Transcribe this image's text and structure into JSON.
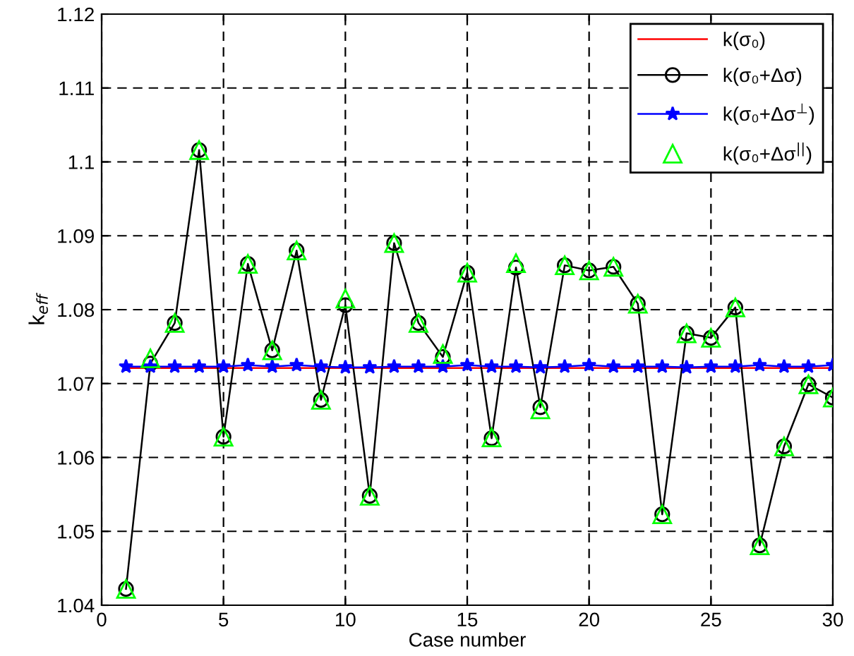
{
  "chart_data": {
    "type": "line",
    "xlabel": "Case number",
    "ylabel": "k$_{eff}$",
    "x": [
      1,
      2,
      3,
      4,
      5,
      6,
      7,
      8,
      9,
      10,
      11,
      12,
      13,
      14,
      15,
      16,
      17,
      18,
      19,
      20,
      21,
      22,
      23,
      24,
      25,
      26,
      27,
      28,
      29,
      30
    ],
    "series": [
      {
        "name": "k(σ₀)",
        "color": "#ff0000",
        "marker": "none",
        "values": [
          1.0721,
          1.0721,
          1.0721,
          1.0721,
          1.0721,
          1.0721,
          1.0721,
          1.0721,
          1.0721,
          1.0721,
          1.0721,
          1.0721,
          1.0721,
          1.0721,
          1.0721,
          1.0721,
          1.0721,
          1.0721,
          1.0721,
          1.0721,
          1.0721,
          1.0721,
          1.0721,
          1.0721,
          1.0721,
          1.0721,
          1.0721,
          1.0721,
          1.0721,
          1.0721
        ]
      },
      {
        "name": "k(σ₀+Δσ)",
        "color": "#000000",
        "marker": "circle",
        "values": [
          1.0422,
          1.0727,
          1.0782,
          1.1016,
          1.0628,
          1.0862,
          1.0745,
          1.088,
          1.0678,
          1.0806,
          1.0548,
          1.089,
          1.0782,
          1.0736,
          1.085,
          1.0626,
          1.0857,
          1.0668,
          1.086,
          1.0853,
          1.0858,
          1.0808,
          1.0523,
          1.0768,
          1.0762,
          1.0803,
          1.0481,
          1.0615,
          1.0699,
          1.0681
        ]
      },
      {
        "name": "k(σ₀+Δσ$^{⊥}$)",
        "color": "#0000ff",
        "marker": "star",
        "values": [
          1.0723,
          1.0723,
          1.0723,
          1.0723,
          1.0723,
          1.0725,
          1.0723,
          1.0725,
          1.0723,
          1.0722,
          1.0722,
          1.0723,
          1.0723,
          1.0723,
          1.0725,
          1.0723,
          1.0723,
          1.0722,
          1.0723,
          1.0725,
          1.0723,
          1.0723,
          1.0723,
          1.0722,
          1.0723,
          1.0723,
          1.0725,
          1.0723,
          1.0723,
          1.0725
        ]
      },
      {
        "name": "k(σ₀+Δσ$^{||}$)",
        "type": "scatter",
        "color": "#00ff00",
        "marker": "triangle",
        "values": [
          1.0422,
          1.0734,
          1.0782,
          1.1016,
          1.0628,
          1.0862,
          1.0745,
          1.088,
          1.0678,
          1.0815,
          1.0548,
          1.089,
          1.0782,
          1.074,
          1.085,
          1.0627,
          1.0863,
          1.0665,
          1.086,
          1.0853,
          1.0858,
          1.0808,
          1.0523,
          1.0768,
          1.0762,
          1.0803,
          1.0481,
          1.0615,
          1.0699,
          1.0681
        ]
      }
    ],
    "xlim": [
      0,
      30
    ],
    "xticks": [
      0,
      5,
      10,
      15,
      20,
      25,
      30
    ],
    "ylim": [
      1.04,
      1.12
    ],
    "yticks": [
      1.04,
      1.05,
      1.06,
      1.07,
      1.08,
      1.09,
      1.1,
      1.11,
      1.12
    ],
    "grid": true,
    "legend": "top right",
    "line_style": "solid"
  }
}
